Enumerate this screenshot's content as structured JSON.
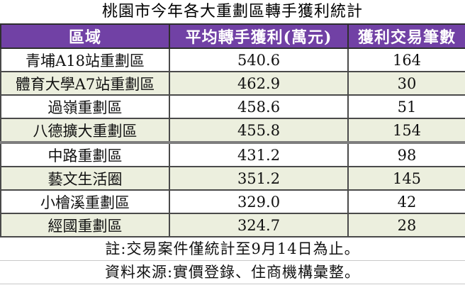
{
  "chart_data": {
    "type": "table",
    "title": "桃園市今年各大重劃區轉手獲利統計",
    "columns": [
      "區域",
      "平均轉手獲利(萬元)",
      "獲利交易筆數"
    ],
    "rows": [
      [
        "青埔A18站重劃區",
        "540.6",
        "164"
      ],
      [
        "體育大學A7站重劃區",
        "462.9",
        "30"
      ],
      [
        "過嶺重劃區",
        "458.6",
        "51"
      ],
      [
        "八德擴大重劃區",
        "455.8",
        "154"
      ],
      [
        "中路重劃區",
        "431.2",
        "98"
      ],
      [
        "藝文生活圈",
        "351.2",
        "145"
      ],
      [
        "小檜溪重劃區",
        "329.0",
        "42"
      ],
      [
        "經國重劃區",
        "324.7",
        "28"
      ]
    ],
    "notes": [
      "註:交易案件僅統計至9月14日為止。",
      "資料來源:實價登錄、住商機構彙整。"
    ],
    "legend_position": "none",
    "grid": true
  },
  "colors": {
    "header_bg": "#7141A5",
    "header_text": "#FFFFFF",
    "row_bg": "#FFFFFF",
    "row_alt_bg": "#ECEFDE",
    "border": "#4A4A4A"
  }
}
